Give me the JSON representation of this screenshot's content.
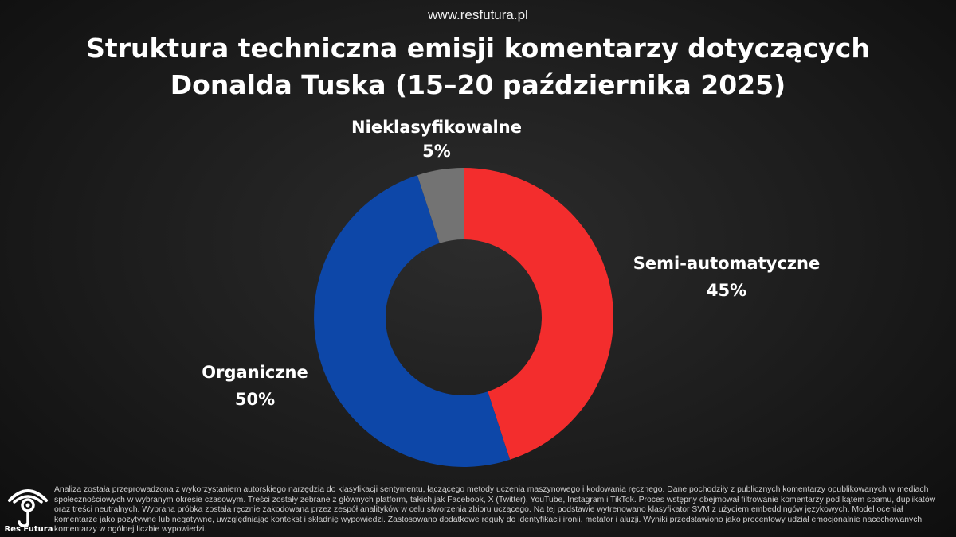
{
  "header": {
    "url": "www.resfutura.pl"
  },
  "chart_data": {
    "type": "pie",
    "title": "Struktura techniczna emisji komentarzy dotyczących Donalda Tuska (15–20 października 2025)",
    "slices": [
      {
        "name": "Semi-automatyczne",
        "value": 45,
        "label": "45%",
        "color": "#f32d2d"
      },
      {
        "name": "Organiczne",
        "value": 50,
        "label": "50%",
        "color": "#0d47a8"
      },
      {
        "name": "Nieklasyfikowalne",
        "value": 5,
        "label": "5%",
        "color": "#737373"
      }
    ],
    "donut": true,
    "legend": "none"
  },
  "footer": {
    "logo_text": "Res Futura",
    "logo_icon": "eye-logo-icon",
    "note": "Analiza została przeprowadzona z wykorzystaniem autorskiego narzędzia do klasyfikacji sentymentu, łączącego metody uczenia maszynowego i kodowania ręcznego. Dane pochodziły z publicznych komentarzy opublikowanych w mediach społecznościowych w wybranym okresie czasowym. Treści zostały zebrane z głównych platform, takich jak Facebook, X (Twitter), YouTube, Instagram i TikTok. Proces wstępny obejmował filtrowanie komentarzy pod kątem spamu, duplikatów oraz treści neutralnych. Wybrana próbka została ręcznie zakodowana przez zespół analityków w celu stworzenia zbioru uczącego. Na tej podstawie wytrenowano klasyfikator SVM z użyciem embeddingów językowych. Model oceniał komentarze jako pozytywne lub negatywne, uwzględniając kontekst i składnię wypowiedzi. Zastosowano dodatkowe reguły do identyfikacji ironii, metafor i aluzji. Wyniki przedstawiono jako procentowy udział emocjonalnie nacechowanych komentarzy w ogólnej liczbie wypowiedzi."
  }
}
